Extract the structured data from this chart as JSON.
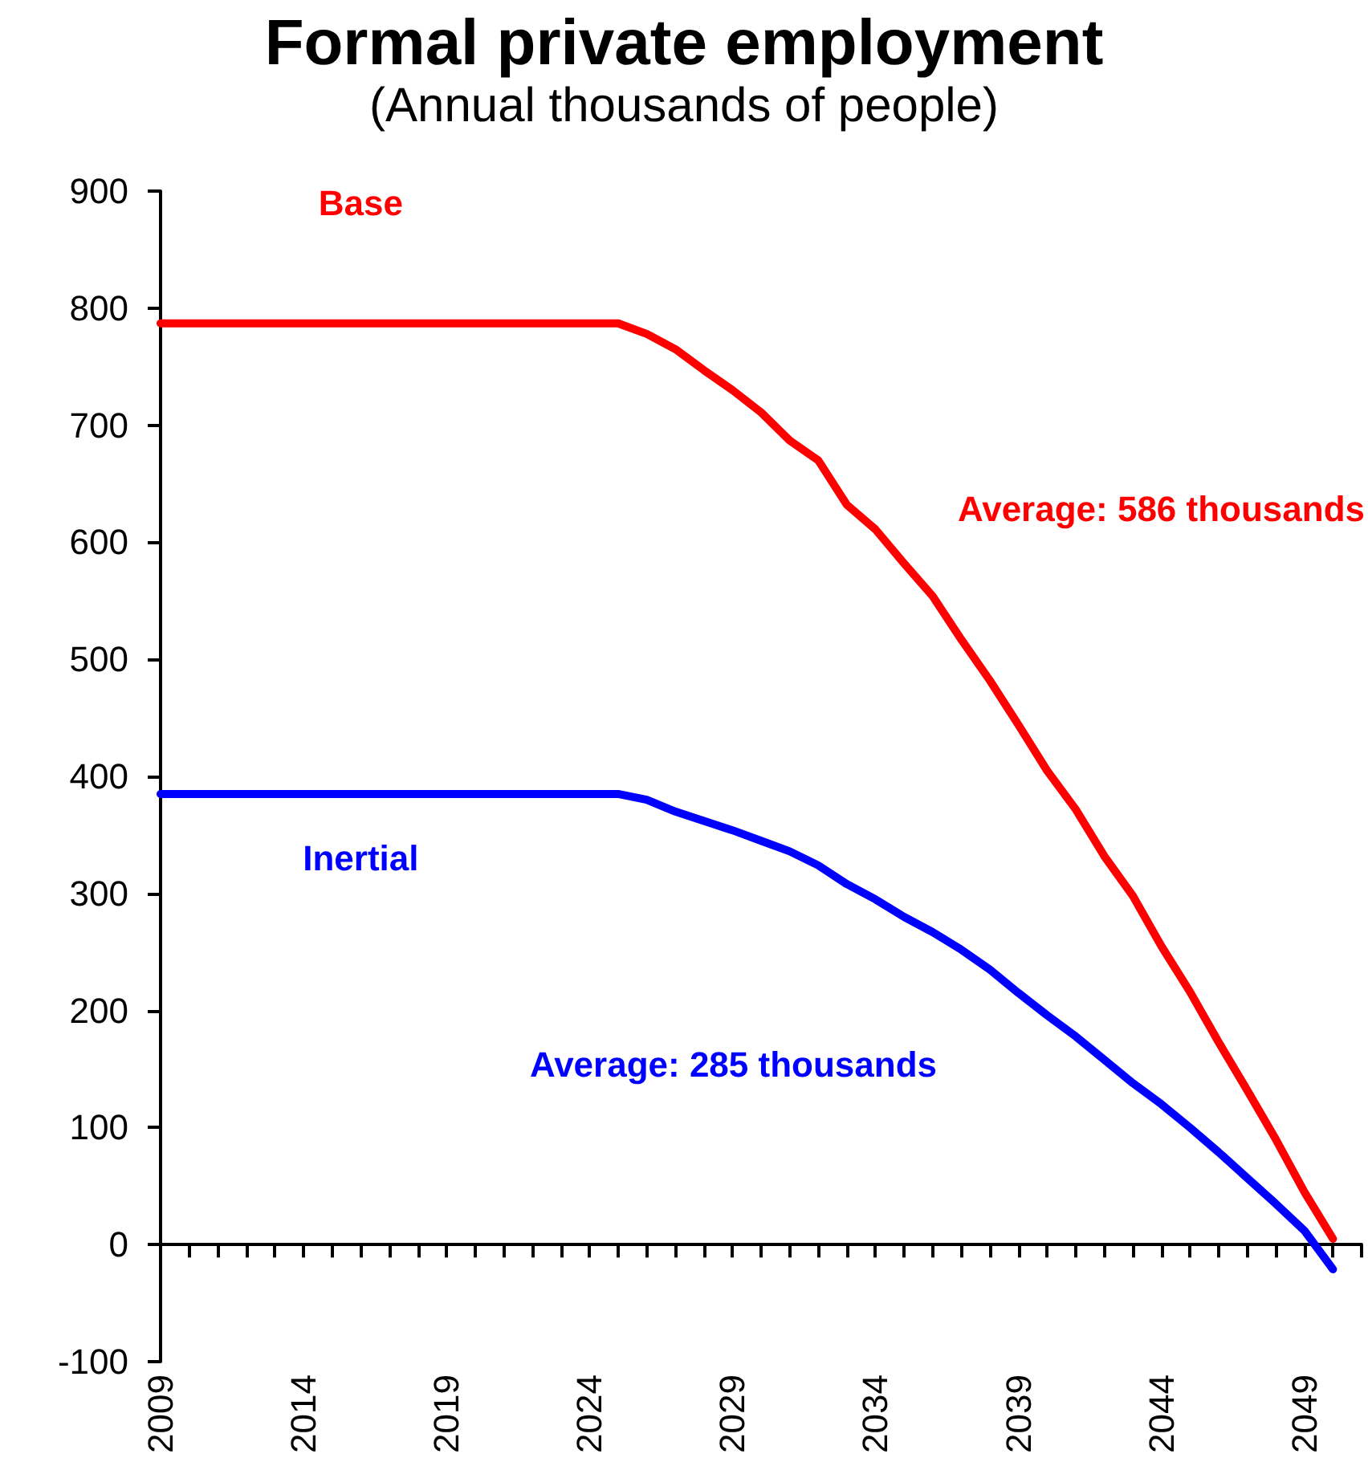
{
  "chart_data": {
    "type": "line",
    "title": "Formal private employment",
    "subtitle": "(Annual thousands of people)",
    "x": [
      2009,
      2010,
      2011,
      2012,
      2013,
      2014,
      2015,
      2016,
      2017,
      2018,
      2019,
      2020,
      2021,
      2022,
      2023,
      2024,
      2025,
      2026,
      2027,
      2028,
      2029,
      2030,
      2031,
      2032,
      2033,
      2034,
      2035,
      2036,
      2037,
      2038,
      2039,
      2040,
      2041,
      2042,
      2043,
      2044,
      2045,
      2046,
      2047,
      2048,
      2049,
      2050
    ],
    "series": [
      {
        "name": "Base",
        "color": "#ff0000",
        "values": [
          787,
          787,
          787,
          787,
          787,
          787,
          787,
          787,
          787,
          787,
          787,
          787,
          787,
          787,
          787,
          787,
          787,
          778,
          765,
          747,
          730,
          711,
          687,
          670,
          632,
          611,
          582,
          554,
          517,
          482,
          444,
          405,
          372,
          332,
          298,
          255,
          216,
          173,
          132,
          90,
          45,
          5
        ]
      },
      {
        "name": "Inertial",
        "color": "#0000ff",
        "values": [
          385,
          385,
          385,
          385,
          385,
          385,
          385,
          385,
          385,
          385,
          385,
          385,
          385,
          385,
          385,
          385,
          385,
          380,
          370,
          362,
          354,
          345,
          336,
          324,
          308,
          295,
          280,
          267,
          252,
          235,
          215,
          196,
          178,
          158,
          138,
          120,
          100,
          79,
          57,
          35,
          12,
          -21
        ]
      }
    ],
    "annotations": [
      "Average: 586 thousands",
      "Average: 285 thousands"
    ],
    "xlim": [
      2009,
      2051
    ],
    "xticks": [
      2009,
      {
        "value": 2010,
        "label": null
      },
      {
        "value": 2011,
        "label": null
      },
      {
        "value": 2012,
        "label": null
      },
      {
        "value": 2013,
        "label": null
      },
      2014,
      {
        "value": 2015,
        "label": null
      },
      {
        "value": 2016,
        "label": null
      },
      {
        "value": 2017,
        "label": null
      },
      {
        "value": 2018,
        "label": null
      },
      2019,
      {
        "value": 2020,
        "label": null
      },
      {
        "value": 2021,
        "label": null
      },
      {
        "value": 2022,
        "label": null
      },
      {
        "value": 2023,
        "label": null
      },
      2024,
      {
        "value": 2025,
        "label": null
      },
      {
        "value": 2026,
        "label": null
      },
      {
        "value": 2027,
        "label": null
      },
      {
        "value": 2028,
        "label": null
      },
      2029,
      {
        "value": 2030,
        "label": null
      },
      {
        "value": 2031,
        "label": null
      },
      {
        "value": 2032,
        "label": null
      },
      {
        "value": 2033,
        "label": null
      },
      2034,
      {
        "value": 2035,
        "label": null
      },
      {
        "value": 2036,
        "label": null
      },
      {
        "value": 2037,
        "label": null
      },
      {
        "value": 2038,
        "label": null
      },
      2039,
      {
        "value": 2040,
        "label": null
      },
      {
        "value": 2041,
        "label": null
      },
      {
        "value": 2042,
        "label": null
      },
      {
        "value": 2043,
        "label": null
      },
      2044,
      {
        "value": 2045,
        "label": null
      },
      {
        "value": 2046,
        "label": null
      },
      {
        "value": 2047,
        "label": null
      },
      {
        "value": 2048,
        "label": null
      },
      2049,
      {
        "value": 2050,
        "label": null
      },
      {
        "value": 2051,
        "label": null
      }
    ],
    "ylim": [
      -100,
      900
    ],
    "yticks": [
      -100,
      0,
      100,
      200,
      300,
      400,
      500,
      600,
      700,
      800,
      900
    ],
    "legend": false,
    "marker": "none",
    "line_style": "solid"
  }
}
